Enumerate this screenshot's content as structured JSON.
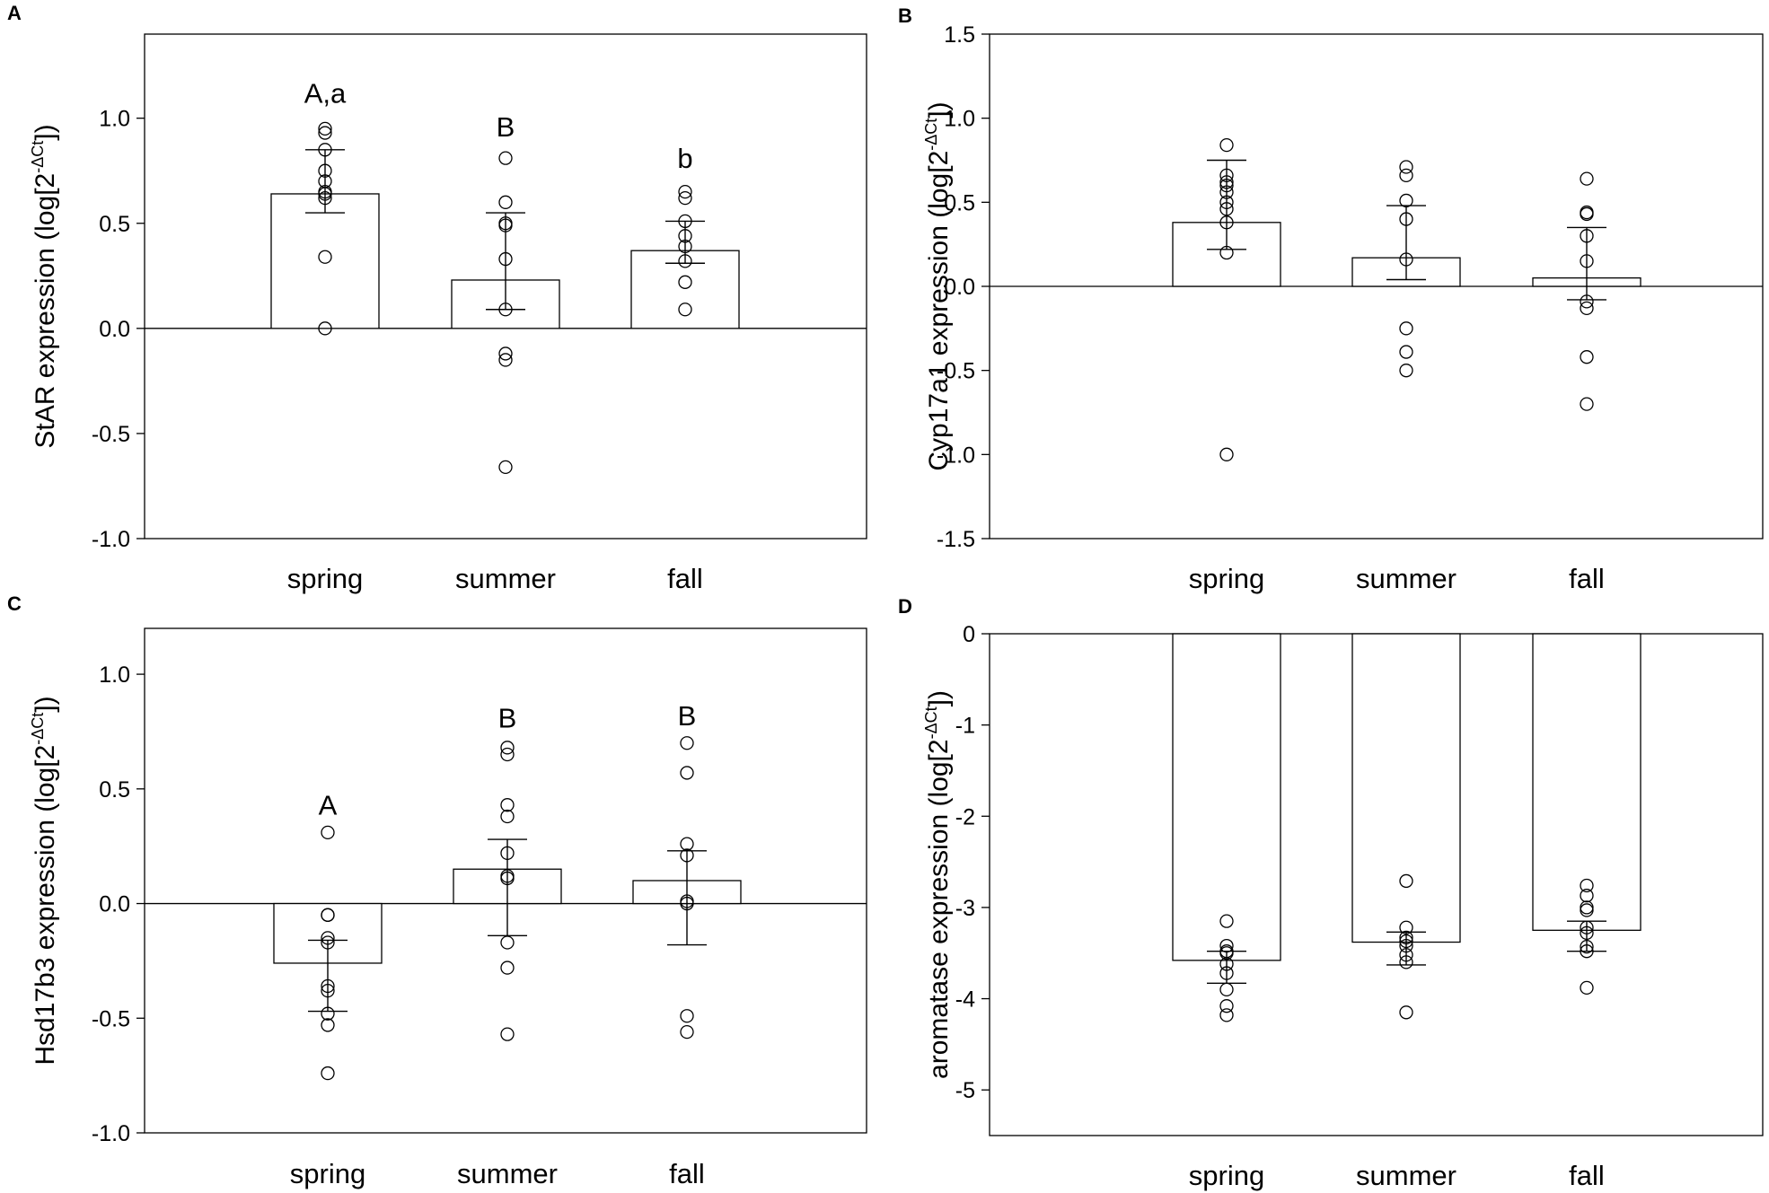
{
  "chart_data": [
    {
      "panel": "A",
      "type": "bar",
      "categories": [
        "spring",
        "summer",
        "fall"
      ],
      "ylabel": "StAR expression (log[2",
      "ylabel_sup": "-ΔCt",
      "ylabel_end": "])",
      "ylim": [
        -1.0,
        1.4
      ],
      "yticks": [
        -1.0,
        -0.5,
        0.0,
        0.5,
        1.0
      ],
      "tick_labels": [
        "-1.0",
        "-0.5",
        "0.0",
        "0.5",
        "1.0"
      ],
      "values": [
        0.64,
        0.23,
        0.37
      ],
      "err_upper": [
        0.85,
        0.55,
        0.51
      ],
      "err_lower": [
        0.55,
        0.09,
        0.31
      ],
      "points": [
        [
          0.95,
          0.93,
          0.85,
          0.75,
          0.7,
          0.65,
          0.64,
          0.62,
          0.34,
          0.0
        ],
        [
          0.81,
          0.6,
          0.5,
          0.49,
          0.33,
          0.09,
          -0.12,
          -0.15,
          -0.66
        ],
        [
          0.65,
          0.62,
          0.51,
          0.44,
          0.39,
          0.32,
          0.22,
          0.09
        ]
      ],
      "sig_labels": [
        "A,a",
        "B",
        "b"
      ],
      "sig_y": [
        1.12,
        0.96,
        0.81
      ]
    },
    {
      "panel": "B",
      "type": "bar",
      "categories": [
        "spring",
        "summer",
        "fall"
      ],
      "ylabel": "Cyp17a1 expression (log[2",
      "ylabel_sup": "-ΔCt",
      "ylabel_end": "])",
      "ylim": [
        -1.5,
        1.5
      ],
      "yticks": [
        -1.5,
        -1.0,
        -0.5,
        0.0,
        0.5,
        1.0,
        1.5
      ],
      "tick_labels": [
        "-1.5",
        "-1.0",
        "-0.5",
        "0.0",
        "0.5",
        "1.0",
        "1.5"
      ],
      "values": [
        0.38,
        0.17,
        0.05
      ],
      "err_upper": [
        0.75,
        0.48,
        0.35
      ],
      "err_lower": [
        0.22,
        0.04,
        -0.08
      ],
      "points": [
        [
          0.84,
          0.66,
          0.62,
          0.6,
          0.56,
          0.5,
          0.46,
          0.38,
          0.2,
          -1.0
        ],
        [
          0.71,
          0.66,
          0.51,
          0.4,
          0.16,
          -0.25,
          -0.39,
          -0.5
        ],
        [
          0.64,
          0.44,
          0.43,
          0.3,
          0.15,
          -0.09,
          -0.13,
          -0.42,
          -0.7
        ]
      ],
      "sig_labels": [],
      "sig_y": []
    },
    {
      "panel": "C",
      "type": "bar",
      "categories": [
        "spring",
        "summer",
        "fall"
      ],
      "ylabel": "Hsd17b3 expression (log[2",
      "ylabel_sup": "-ΔCt",
      "ylabel_end": "])",
      "ylim": [
        -1.0,
        1.2
      ],
      "yticks": [
        -1.0,
        -0.5,
        0.0,
        0.5,
        1.0
      ],
      "tick_labels": [
        "-1.0",
        "-0.5",
        "0.0",
        "0.5",
        "1.0"
      ],
      "values": [
        -0.26,
        0.15,
        0.1
      ],
      "err_upper": [
        -0.16,
        0.28,
        0.23
      ],
      "err_lower": [
        -0.47,
        -0.14,
        -0.18
      ],
      "points": [
        [
          0.31,
          -0.05,
          -0.05,
          -0.15,
          -0.17,
          -0.36,
          -0.38,
          -0.48,
          -0.53,
          -0.74
        ],
        [
          0.68,
          0.65,
          0.43,
          0.38,
          0.22,
          0.12,
          0.11,
          -0.17,
          -0.28,
          -0.57
        ],
        [
          0.7,
          0.57,
          0.26,
          0.21,
          0.01,
          0.0,
          -0.49,
          -0.56
        ]
      ],
      "sig_labels": [
        "A",
        "B",
        "B"
      ],
      "sig_y": [
        0.43,
        0.81,
        0.82
      ]
    },
    {
      "panel": "D",
      "type": "bar",
      "categories": [
        "spring",
        "summer",
        "fall"
      ],
      "ylabel": "aromatase expression (log[2",
      "ylabel_sup": "-ΔCt",
      "ylabel_end": "])",
      "ylim": [
        -5.5,
        0.0
      ],
      "yticks": [
        -5,
        -4,
        -3,
        -2,
        -1,
        0
      ],
      "tick_labels": [
        "-5",
        "-4",
        "-3",
        "-2",
        "-1",
        "0"
      ],
      "values": [
        -3.58,
        -3.38,
        -3.25
      ],
      "err_upper": [
        -3.48,
        -3.27,
        -3.15
      ],
      "err_lower": [
        -3.83,
        -3.63,
        -3.48
      ],
      "points": [
        [
          -3.15,
          -3.42,
          -3.48,
          -3.5,
          -3.62,
          -3.72,
          -3.9,
          -4.08,
          -4.18
        ],
        [
          -2.71,
          -3.22,
          -3.33,
          -3.37,
          -3.42,
          -3.52,
          -3.6,
          -4.15
        ],
        [
          -2.76,
          -2.87,
          -3.0,
          -3.03,
          -3.22,
          -3.28,
          -3.43,
          -3.48,
          -3.88
        ]
      ],
      "sig_labels": [],
      "sig_y": []
    }
  ]
}
